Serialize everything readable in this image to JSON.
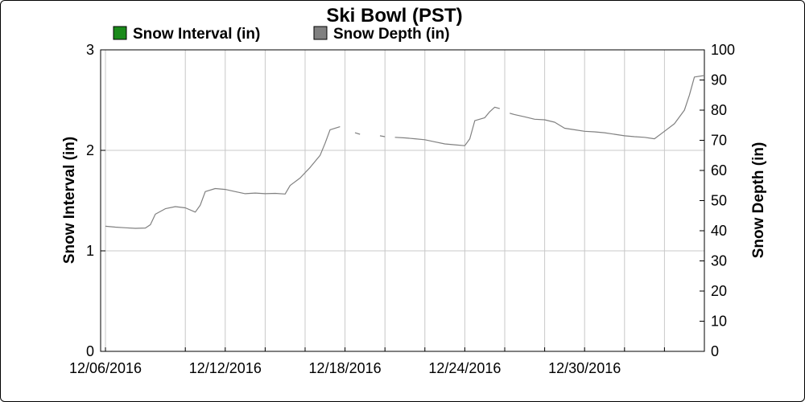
{
  "chart_data": {
    "type": "line",
    "title": "Ski Bowl (PST)",
    "legend": [
      {
        "name": "Snow Interval (in)",
        "color": "#1a8a1a"
      },
      {
        "name": "Snow Depth (in)",
        "color": "#808080"
      }
    ],
    "legend_placement": "top",
    "grid": true,
    "x_axis": {
      "type": "date",
      "range": [
        "2016-12-06",
        "2017-01-05"
      ],
      "tick_labels": [
        "12/06/2016",
        "12/12/2016",
        "12/18/2016",
        "12/24/2016",
        "12/30/2016"
      ],
      "tick_dates": [
        "2016-12-06",
        "2016-12-12",
        "2016-12-18",
        "2016-12-24",
        "2016-12-30"
      ],
      "minor_tick_dates": [
        "2016-12-10",
        "2016-12-14",
        "2016-12-16",
        "2016-12-20",
        "2016-12-22",
        "2016-12-26",
        "2016-12-28",
        "2017-01-01",
        "2017-01-03"
      ]
    },
    "y_left": {
      "label": "Snow Interval (in)",
      "range": [
        0,
        3
      ],
      "ticks": [
        "0",
        "1",
        "2",
        "3"
      ]
    },
    "y_right": {
      "label": "Snow Depth (in)",
      "range": [
        0,
        100
      ],
      "ticks": [
        "0",
        "10",
        "20",
        "30",
        "40",
        "50",
        "60",
        "70",
        "80",
        "90",
        "100"
      ]
    },
    "series": [
      {
        "name": "Snow Depth (in)",
        "axis": "right",
        "color": "#808080",
        "segments": [
          [
            [
              "2016-12-06 00:00",
              41.5
            ],
            [
              "2016-12-06 12:00",
              41.2
            ],
            [
              "2016-12-07 00:00",
              41.0
            ],
            [
              "2016-12-07 12:00",
              40.8
            ],
            [
              "2016-12-08 00:00",
              40.9
            ],
            [
              "2016-12-08 06:00",
              42.0
            ],
            [
              "2016-12-08 12:00",
              45.5
            ],
            [
              "2016-12-09 00:00",
              47.3
            ],
            [
              "2016-12-09 12:00",
              48.0
            ],
            [
              "2016-12-10 00:00",
              47.6
            ],
            [
              "2016-12-10 12:00",
              46.2
            ],
            [
              "2016-12-10 18:00",
              48.5
            ],
            [
              "2016-12-11 00:00",
              53.0
            ],
            [
              "2016-12-11 12:00",
              54.0
            ],
            [
              "2016-12-12 00:00",
              53.7
            ],
            [
              "2016-12-12 12:00",
              53.0
            ],
            [
              "2016-12-13 00:00",
              52.3
            ],
            [
              "2016-12-13 12:00",
              52.5
            ],
            [
              "2016-12-14 00:00",
              52.3
            ],
            [
              "2016-12-14 12:00",
              52.4
            ],
            [
              "2016-12-15 00:00",
              52.2
            ],
            [
              "2016-12-15 06:00",
              55.0
            ],
            [
              "2016-12-15 18:00",
              57.5
            ],
            [
              "2016-12-16 06:00",
              61.0
            ],
            [
              "2016-12-16 18:00",
              65.0
            ],
            [
              "2016-12-17 00:00",
              69.0
            ],
            [
              "2016-12-17 06:00",
              73.5
            ],
            [
              "2016-12-17 18:00",
              74.5
            ]
          ],
          [
            [
              "2016-12-18 12:00",
              72.5
            ],
            [
              "2016-12-18 18:00",
              72.0
            ]
          ],
          [
            [
              "2016-12-19 18:00",
              71.5
            ],
            [
              "2016-12-20 00:00",
              71.2
            ]
          ],
          [
            [
              "2016-12-20 12:00",
              71.0
            ],
            [
              "2016-12-21 00:00",
              70.8
            ],
            [
              "2016-12-21 12:00",
              70.5
            ],
            [
              "2016-12-22 00:00",
              70.2
            ],
            [
              "2016-12-22 12:00",
              69.5
            ],
            [
              "2016-12-23 00:00",
              68.8
            ],
            [
              "2016-12-23 12:00",
              68.5
            ],
            [
              "2016-12-24 00:00",
              68.2
            ],
            [
              "2016-12-24 06:00",
              70.5
            ],
            [
              "2016-12-24 12:00",
              76.5
            ],
            [
              "2016-12-25 00:00",
              77.5
            ],
            [
              "2016-12-25 06:00",
              79.5
            ],
            [
              "2016-12-25 12:00",
              81.0
            ],
            [
              "2016-12-25 18:00",
              80.5
            ]
          ],
          [
            [
              "2016-12-26 06:00",
              79.0
            ],
            [
              "2016-12-26 12:00",
              78.5
            ],
            [
              "2016-12-27 00:00",
              77.8
            ],
            [
              "2016-12-27 12:00",
              77.0
            ],
            [
              "2016-12-28 00:00",
              76.8
            ],
            [
              "2016-12-28 12:00",
              76.0
            ],
            [
              "2016-12-29 00:00",
              74.0
            ],
            [
              "2016-12-29 12:00",
              73.5
            ],
            [
              "2016-12-30 00:00",
              73.0
            ],
            [
              "2016-12-30 12:00",
              72.8
            ],
            [
              "2016-12-31 00:00",
              72.5
            ],
            [
              "2016-12-31 12:00",
              72.0
            ],
            [
              "2017-01-01 00:00",
              71.5
            ],
            [
              "2017-01-01 12:00",
              71.2
            ],
            [
              "2017-01-02 00:00",
              71.0
            ],
            [
              "2017-01-02 12:00",
              70.5
            ],
            [
              "2017-01-03 00:00",
              73.0
            ],
            [
              "2017-01-03 12:00",
              75.5
            ],
            [
              "2017-01-04 00:00",
              80.0
            ],
            [
              "2017-01-04 06:00",
              85.0
            ],
            [
              "2017-01-04 12:00",
              91.0
            ],
            [
              "2017-01-05 00:00",
              91.5
            ]
          ]
        ]
      },
      {
        "name": "Snow Interval (in)",
        "axis": "left",
        "color": "#1a8a1a",
        "segments": []
      }
    ]
  }
}
